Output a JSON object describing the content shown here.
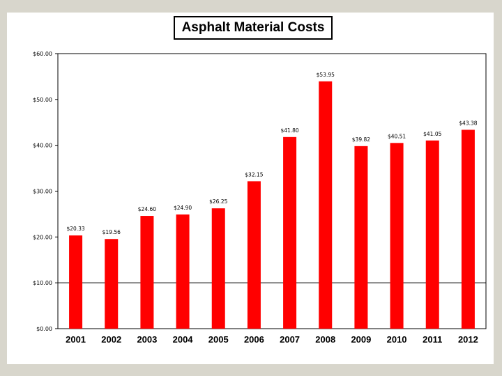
{
  "chart_data": {
    "type": "bar",
    "title": "Asphalt Material Costs",
    "xlabel": "",
    "ylabel": "",
    "ylim": [
      0,
      60
    ],
    "ytick_values": [
      0,
      10,
      20,
      30,
      40,
      50,
      60
    ],
    "ytick_labels": [
      "$0.00",
      "$10.00",
      "$20.00",
      "$30.00",
      "$40.00",
      "$50.00",
      "$60.00"
    ],
    "categories": [
      "2001",
      "2002",
      "2003",
      "2004",
      "2005",
      "2006",
      "2007",
      "2008",
      "2009",
      "2010",
      "2011",
      "2012"
    ],
    "values": [
      20.33,
      19.56,
      24.6,
      24.9,
      26.25,
      32.15,
      41.8,
      53.95,
      39.82,
      40.51,
      41.05,
      43.38
    ],
    "data_labels": [
      "$20.33",
      "$19.56",
      "$24.60",
      "$24.90",
      "$26.25",
      "$32.15",
      "$41.80",
      "$53.95",
      "$39.82",
      "$40.51",
      "$41.05",
      "$43.38"
    ],
    "grid": false,
    "reference_line_value": 10,
    "colors": {
      "bar": "#ff0000",
      "background": "#ffffff",
      "frame": "#d8d6cc"
    }
  }
}
